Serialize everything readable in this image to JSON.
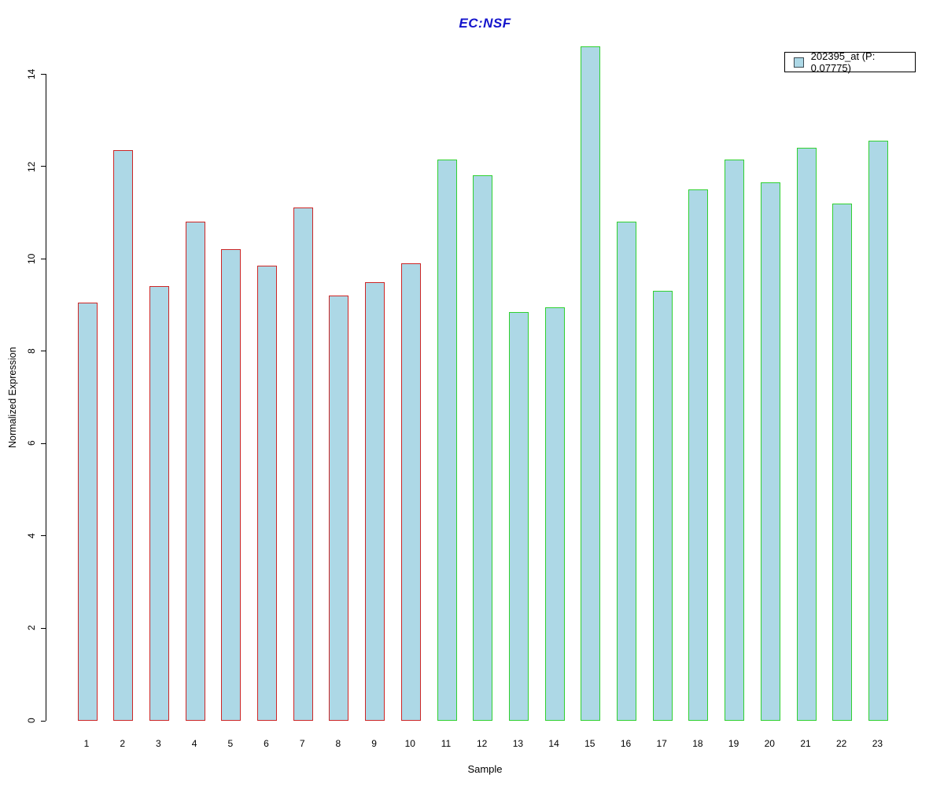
{
  "chart_data": {
    "type": "bar",
    "title": "EC:NSF",
    "title_color": "#1414cc",
    "xlabel": "Sample",
    "ylabel": "Normalized Expression",
    "categories": [
      "1",
      "2",
      "3",
      "4",
      "5",
      "6",
      "7",
      "8",
      "9",
      "10",
      "11",
      "12",
      "13",
      "14",
      "15",
      "16",
      "17",
      "18",
      "19",
      "20",
      "21",
      "22",
      "23"
    ],
    "values": [
      9.05,
      12.35,
      9.4,
      10.8,
      10.2,
      9.85,
      11.1,
      9.2,
      9.5,
      9.9,
      12.15,
      11.8,
      8.85,
      8.95,
      14.6,
      10.8,
      9.3,
      11.5,
      12.15,
      11.65,
      12.4,
      11.2,
      12.55
    ],
    "ylim": [
      0,
      14
    ],
    "yticks": [
      0,
      2,
      4,
      6,
      8,
      10,
      12,
      14
    ],
    "grid": false,
    "bar_fill": "#add8e6",
    "bar_border_colors": [
      "#cd2626",
      "#cd2626",
      "#cd2626",
      "#cd2626",
      "#cd2626",
      "#cd2626",
      "#cd2626",
      "#cd2626",
      "#cd2626",
      "#cd2626",
      "#30d030",
      "#30d030",
      "#30d030",
      "#30d030",
      "#30d030",
      "#30d030",
      "#30d030",
      "#30d030",
      "#30d030",
      "#30d030",
      "#30d030",
      "#30d030",
      "#30d030"
    ],
    "groups": [
      {
        "samples": "1-10",
        "border_color": "#cd2626"
      },
      {
        "samples": "11-23",
        "border_color": "#30d030"
      }
    ],
    "legend": {
      "position": "top-right",
      "entries": [
        {
          "label": "202395_at (P: 0.07775)",
          "swatch_fill": "#add8e6",
          "swatch_border": "#3c4a52"
        }
      ]
    },
    "axis_color": "#000000"
  }
}
